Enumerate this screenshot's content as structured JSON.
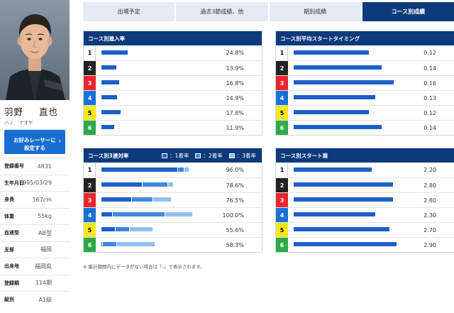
{
  "racer": {
    "name_family": "羽野",
    "name_given": "直也",
    "kana_family": "ハノ",
    "kana_given": "ナオヤ",
    "fav_button_line1": "お好みレーサーに",
    "fav_button_line2": "設定する",
    "fav_button_chevron": "›",
    "info": [
      {
        "label": "登録番号",
        "value": "4831"
      },
      {
        "label": "生年月日",
        "value": "1995/03/29"
      },
      {
        "label": "身長",
        "value": "167cm"
      },
      {
        "label": "体重",
        "value": "55kg"
      },
      {
        "label": "血液型",
        "value": "AB型"
      },
      {
        "label": "支部",
        "value": "福岡"
      },
      {
        "label": "出身地",
        "value": "福岡県"
      },
      {
        "label": "登録期",
        "value": "114期"
      },
      {
        "label": "級別",
        "value": "A1級"
      }
    ]
  },
  "tabs": [
    {
      "label": "出場予定",
      "active": false
    },
    {
      "label": "過去3節成績、他",
      "active": false
    },
    {
      "label": "期別成績",
      "active": false
    },
    {
      "label": "コース別成績",
      "active": true
    }
  ],
  "lane_colors": {
    "1": {
      "bg": "#ffffff",
      "fg": "#000000",
      "border": "#cccccc"
    },
    "2": {
      "bg": "#222222",
      "fg": "#ffffff"
    },
    "3": {
      "bg": "#e8262c",
      "fg": "#ffffff"
    },
    "4": {
      "bg": "#1a70d6",
      "fg": "#ffffff"
    },
    "5": {
      "bg": "#f4e620",
      "fg": "#000000"
    },
    "6": {
      "bg": "#2fa84a",
      "fg": "#ffffff"
    }
  },
  "colors": {
    "bar_dark": "#1d5fc6",
    "bar_mid": "#3f88dc",
    "bar_light": "#93bfee",
    "header": "#0d3a7a"
  },
  "panels": {
    "entry_rate": {
      "title": "コース別進入率",
      "max": 100,
      "rows": [
        {
          "lane": "1",
          "value": 24.8,
          "label": "24.8%"
        },
        {
          "lane": "2",
          "value": 13.9,
          "label": "13.9%"
        },
        {
          "lane": "3",
          "value": 16.8,
          "label": "16.8%"
        },
        {
          "lane": "4",
          "value": 14.9,
          "label": "14.9%"
        },
        {
          "lane": "5",
          "value": 17.8,
          "label": "17.8%"
        },
        {
          "lane": "6",
          "value": 11.9,
          "label": "11.9%"
        }
      ]
    },
    "avg_st": {
      "title": "コース別平均スタートタイミング",
      "max": 0.17,
      "rows": [
        {
          "lane": "1",
          "value": 0.12,
          "label": "0.12"
        },
        {
          "lane": "2",
          "value": 0.14,
          "label": "0.14"
        },
        {
          "lane": "3",
          "value": 0.16,
          "label": "0.16"
        },
        {
          "lane": "4",
          "value": 0.13,
          "label": "0.13"
        },
        {
          "lane": "5",
          "value": 0.12,
          "label": "0.12"
        },
        {
          "lane": "6",
          "value": 0.14,
          "label": "0.14"
        }
      ]
    },
    "top3_rate": {
      "title": "コース別3連対率",
      "legend": [
        "：1着率",
        "：2着率",
        "：3着率"
      ],
      "max": 100,
      "rows": [
        {
          "lane": "1",
          "first": 85.0,
          "second": 6.0,
          "third": 5.0,
          "label": "96.0%"
        },
        {
          "lane": "2",
          "first": 45.0,
          "second": 28.0,
          "third": 5.6,
          "label": "78.6%"
        },
        {
          "lane": "3",
          "first": 33.0,
          "second": 23.0,
          "third": 20.5,
          "label": "76.5%"
        },
        {
          "lane": "4",
          "first": 12.0,
          "second": 58.0,
          "third": 30.0,
          "label": "100.0%"
        },
        {
          "lane": "5",
          "first": 15.0,
          "second": 15.0,
          "third": 25.6,
          "label": "55.6%"
        },
        {
          "lane": "6",
          "first": 1.0,
          "second": 15.0,
          "third": 42.3,
          "label": "58.3%"
        }
      ]
    },
    "start_order": {
      "title": "コース別スタート展",
      "max": 3.0,
      "rows": [
        {
          "lane": "1",
          "value": 2.2,
          "label": "2.20"
        },
        {
          "lane": "2",
          "value": 2.8,
          "label": "2.80"
        },
        {
          "lane": "3",
          "value": 2.8,
          "label": "2.80"
        },
        {
          "lane": "4",
          "value": 2.3,
          "label": "2.30"
        },
        {
          "lane": "5",
          "value": 2.7,
          "label": "2.70"
        },
        {
          "lane": "6",
          "value": 2.9,
          "label": "2.90"
        }
      ]
    }
  },
  "note": "※ 集計期間内にデータがない場合は「-」で表示されます。"
}
